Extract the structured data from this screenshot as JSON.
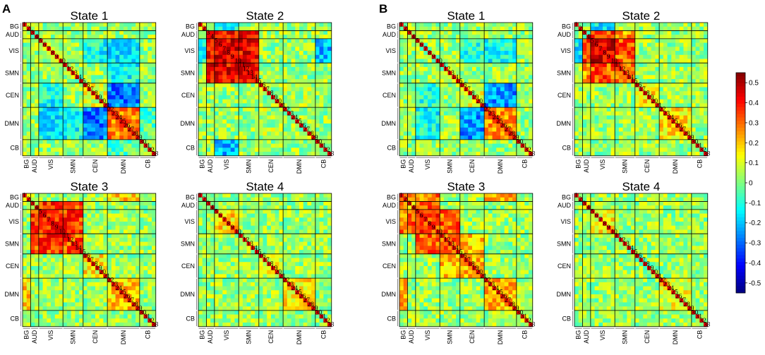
{
  "figure": {
    "panel_labels": [
      "A",
      "B"
    ]
  },
  "chart_data": {
    "type": "heatmap",
    "description_unit": "dynamic functional connectivity states (correlation)",
    "n_components": 33,
    "component_labels": [
      "1",
      "2",
      "3",
      "4",
      "5",
      "6",
      "7",
      "8",
      "9",
      "10",
      "11",
      "12",
      "13",
      "14",
      "15",
      "16",
      "17",
      "18",
      "19",
      "20",
      "21",
      "22",
      "23",
      "24",
      "25",
      "26",
      "27",
      "28",
      "29",
      "30",
      "31",
      "32",
      "33"
    ],
    "networks": [
      {
        "name": "BG",
        "start": 1,
        "end": 2
      },
      {
        "name": "AUD",
        "start": 3,
        "end": 4
      },
      {
        "name": "VIS",
        "start": 5,
        "end": 10
      },
      {
        "name": "SMN",
        "start": 11,
        "end": 15
      },
      {
        "name": "CEN",
        "start": 16,
        "end": 21
      },
      {
        "name": "DMN",
        "start": 22,
        "end": 29
      },
      {
        "name": "CB",
        "start": 30,
        "end": 33
      }
    ],
    "colorbar": {
      "min": -0.55,
      "max": 0.55,
      "ticks": [
        "0.5",
        "0.4",
        "0.3",
        "0.2",
        "0.1",
        "0",
        "-0.1",
        "-0.2",
        "-0.3",
        "-0.4",
        "-0.5"
      ],
      "tick_values": [
        0.5,
        0.4,
        0.3,
        0.2,
        0.1,
        0,
        -0.1,
        -0.2,
        -0.3,
        -0.4,
        -0.5
      ],
      "colormap": "jet"
    },
    "panels": [
      {
        "group": "A",
        "title": "State 1",
        "blocks": [
          {
            "a": "VIS",
            "b": "CEN",
            "value": -0.12
          },
          {
            "a": "VIS",
            "b": "DMN",
            "value": -0.15
          },
          {
            "a": "SMN",
            "b": "DMN",
            "value": -0.12
          },
          {
            "a": "CEN",
            "b": "DMN",
            "value": -0.28
          },
          {
            "a": "DMN",
            "b": "DMN",
            "value": 0.28
          },
          {
            "a": "CEN",
            "b": "CEN",
            "value": 0.1
          },
          {
            "a": "CB",
            "b": "DMN",
            "value": -0.05
          }
        ]
      },
      {
        "group": "A",
        "title": "State 2",
        "blocks": [
          {
            "a": "AUD",
            "b": "AUD",
            "value": 0.4
          },
          {
            "a": "AUD",
            "b": "VIS",
            "value": 0.42
          },
          {
            "a": "AUD",
            "b": "SMN",
            "value": 0.4
          },
          {
            "a": "VIS",
            "b": "VIS",
            "value": 0.45
          },
          {
            "a": "VIS",
            "b": "SMN",
            "value": 0.42
          },
          {
            "a": "SMN",
            "b": "SMN",
            "value": 0.4
          },
          {
            "a": "BG",
            "b": "VIS",
            "value": -0.15
          },
          {
            "a": "VIS",
            "b": "CB",
            "value": -0.2
          },
          {
            "a": "CEN",
            "b": "DMN",
            "value": 0.05
          }
        ]
      },
      {
        "group": "A",
        "title": "State 3",
        "blocks": [
          {
            "a": "AUD",
            "b": "VIS",
            "value": 0.35
          },
          {
            "a": "VIS",
            "b": "VIS",
            "value": 0.38
          },
          {
            "a": "VIS",
            "b": "SMN",
            "value": 0.35
          },
          {
            "a": "SMN",
            "b": "SMN",
            "value": 0.32
          },
          {
            "a": "AUD",
            "b": "SMN",
            "value": 0.3
          },
          {
            "a": "CEN",
            "b": "CEN",
            "value": 0.15
          },
          {
            "a": "DMN",
            "b": "DMN",
            "value": 0.2
          },
          {
            "a": "BG",
            "b": "DMN",
            "value": 0.18
          }
        ]
      },
      {
        "group": "A",
        "title": "State 4",
        "blocks": [
          {
            "a": "VIS",
            "b": "VIS",
            "value": 0.18
          },
          {
            "a": "DMN",
            "b": "DMN",
            "value": 0.15
          },
          {
            "a": "CEN",
            "b": "CEN",
            "value": 0.1
          }
        ]
      },
      {
        "group": "B",
        "title": "State 1",
        "blocks": [
          {
            "a": "VIS",
            "b": "CEN",
            "value": -0.1
          },
          {
            "a": "VIS",
            "b": "DMN",
            "value": -0.12
          },
          {
            "a": "CEN",
            "b": "DMN",
            "value": -0.25
          },
          {
            "a": "DMN",
            "b": "DMN",
            "value": 0.25
          },
          {
            "a": "CEN",
            "b": "CEN",
            "value": 0.1
          }
        ]
      },
      {
        "group": "B",
        "title": "State 2",
        "blocks": [
          {
            "a": "VIS",
            "b": "VIS",
            "value": 0.45
          },
          {
            "a": "AUD",
            "b": "VIS",
            "value": 0.35
          },
          {
            "a": "VIS",
            "b": "SMN",
            "value": 0.32
          },
          {
            "a": "SMN",
            "b": "SMN",
            "value": 0.3
          },
          {
            "a": "AUD",
            "b": "SMN",
            "value": 0.25
          },
          {
            "a": "BG",
            "b": "VIS",
            "value": -0.15
          },
          {
            "a": "CEN",
            "b": "CEN",
            "value": 0.15
          },
          {
            "a": "DMN",
            "b": "DMN",
            "value": 0.18
          }
        ]
      },
      {
        "group": "B",
        "title": "State 3",
        "blocks": [
          {
            "a": "BG",
            "b": "BG",
            "value": 0.25
          },
          {
            "a": "BG",
            "b": "AUD",
            "value": 0.3
          },
          {
            "a": "BG",
            "b": "VIS",
            "value": 0.28
          },
          {
            "a": "AUD",
            "b": "VIS",
            "value": 0.32
          },
          {
            "a": "VIS",
            "b": "VIS",
            "value": 0.35
          },
          {
            "a": "VIS",
            "b": "SMN",
            "value": 0.3
          },
          {
            "a": "SMN",
            "b": "SMN",
            "value": 0.28
          },
          {
            "a": "CEN",
            "b": "CEN",
            "value": 0.22
          },
          {
            "a": "DMN",
            "b": "DMN",
            "value": 0.22
          },
          {
            "a": "SMN",
            "b": "CEN",
            "value": 0.2
          },
          {
            "a": "BG",
            "b": "DMN",
            "value": 0.22
          }
        ]
      },
      {
        "group": "B",
        "title": "State 4",
        "blocks": [
          {
            "a": "VIS",
            "b": "VIS",
            "value": 0.15
          },
          {
            "a": "DMN",
            "b": "DMN",
            "value": 0.12
          }
        ]
      }
    ]
  }
}
